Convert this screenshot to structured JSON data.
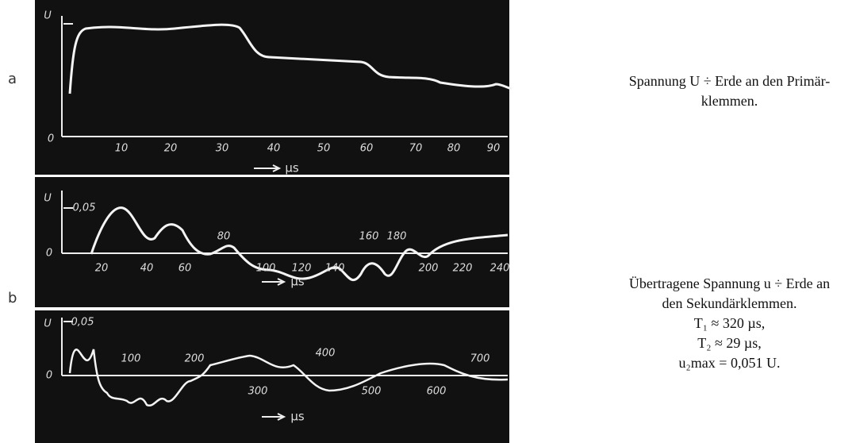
{
  "figure_labels": {
    "a": "a",
    "b": "b"
  },
  "panels": [
    {
      "y_label": "U",
      "zero": "0",
      "ticks": [
        "10",
        "20",
        "30",
        "40",
        "50",
        "60",
        "70",
        "80",
        "90"
      ],
      "unit": "µs"
    },
    {
      "y_label": "U",
      "zero": "0",
      "amplitude": "0,05",
      "ticks": [
        "20",
        "40",
        "60",
        "80",
        "100",
        "120",
        "140",
        "160",
        "180",
        "200",
        "220",
        "240"
      ],
      "unit": "µs"
    },
    {
      "y_label": "U",
      "zero": "0",
      "amplitude": "0,05",
      "ticks": [
        "100",
        "200",
        "300",
        "400",
        "500",
        "600",
        "700"
      ],
      "unit": "µs"
    }
  ],
  "captions": {
    "a": [
      "Spannung U ÷ Erde an den Primär-",
      "klemmen."
    ],
    "b": [
      "Übertragene Spannung u ÷ Erde an",
      "den Sekundärklemmen.",
      "T₁ ≈ 320 µs,",
      "T₂ ≈ 29 µs,",
      "u₂max = 0,051 U."
    ]
  }
}
